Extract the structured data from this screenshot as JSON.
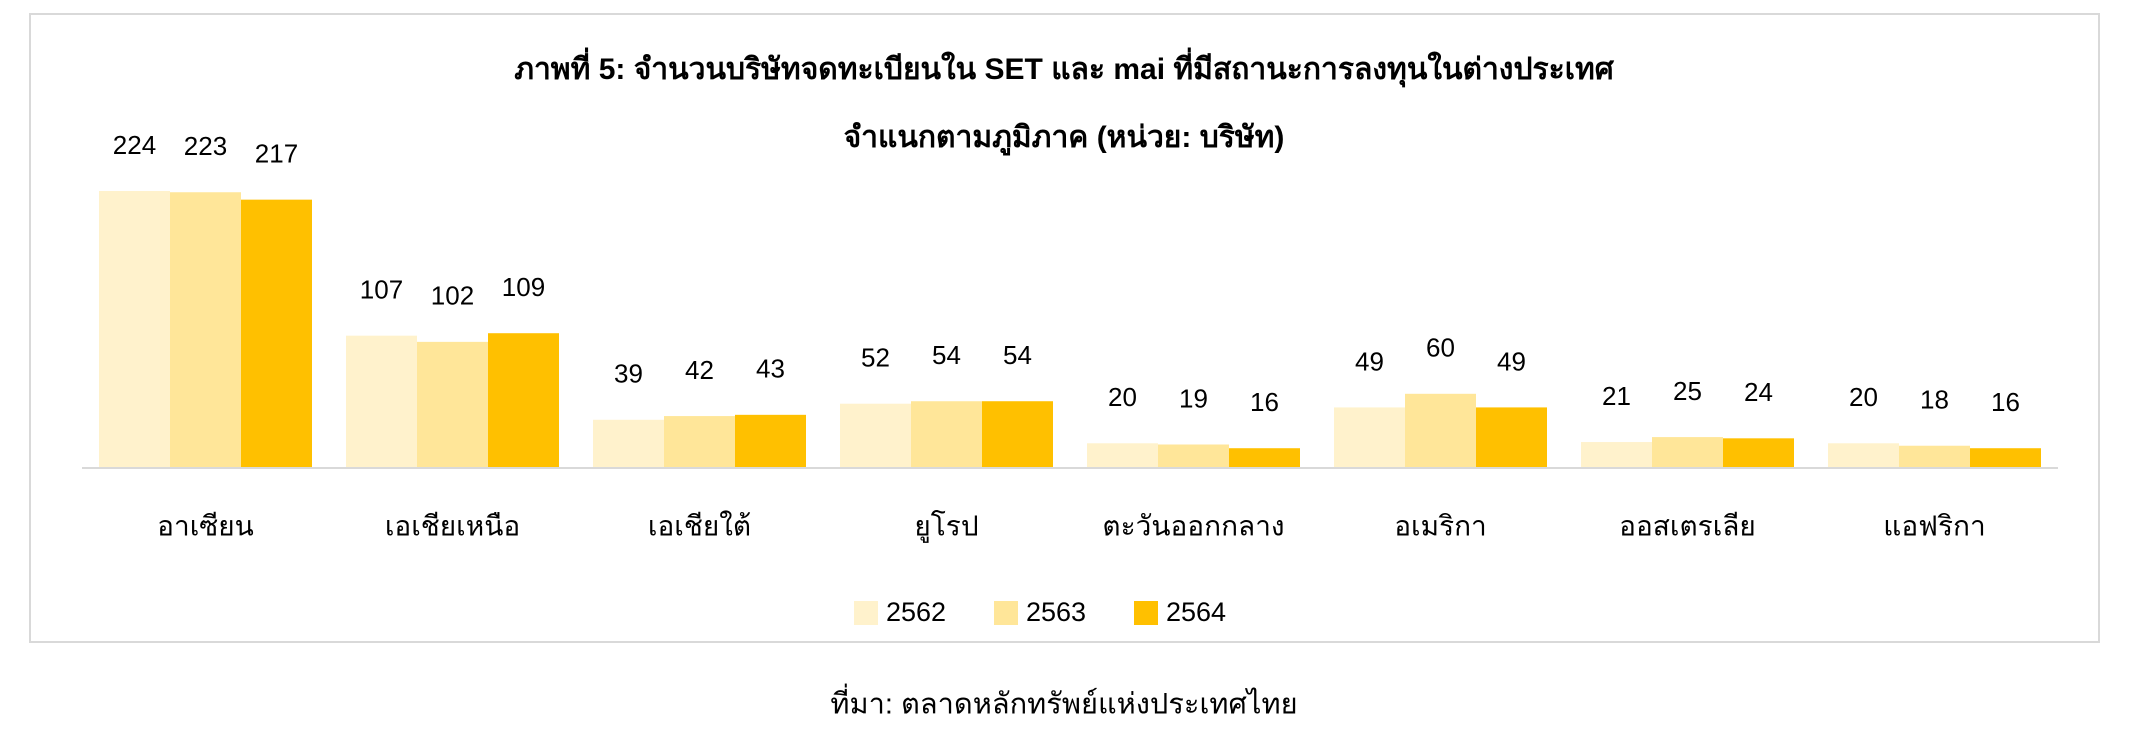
{
  "chart_data": {
    "type": "bar",
    "title": "ภาพที่ 5: จำนวนบริษัทจดทะเบียนใน SET และ mai ที่มีสถานะการลงทุนในต่างประเทศ",
    "subtitle": "จำแนกตามภูมิภาค (หน่วย: บริษัท)",
    "categories": [
      "อาเซียน",
      "เอเชียเหนือ",
      "เอเชียใต้",
      "ยูโรป",
      "ตะวันออกกลาง",
      "อเมริกา",
      "ออสเตรเลีย",
      "แอฟริกา"
    ],
    "series": [
      {
        "name": "2562",
        "color": "#fff2cc",
        "values": [
          224,
          107,
          39,
          52,
          20,
          49,
          21,
          20
        ]
      },
      {
        "name": "2563",
        "color": "#ffe699",
        "values": [
          223,
          102,
          42,
          54,
          19,
          60,
          25,
          18
        ]
      },
      {
        "name": "2564",
        "color": "#ffc000",
        "values": [
          217,
          109,
          43,
          54,
          16,
          49,
          24,
          16
        ]
      }
    ],
    "legend": "bottom",
    "source": "ที่มา: ตลาดหลักทรัพย์แห่งประเทศไทย"
  }
}
